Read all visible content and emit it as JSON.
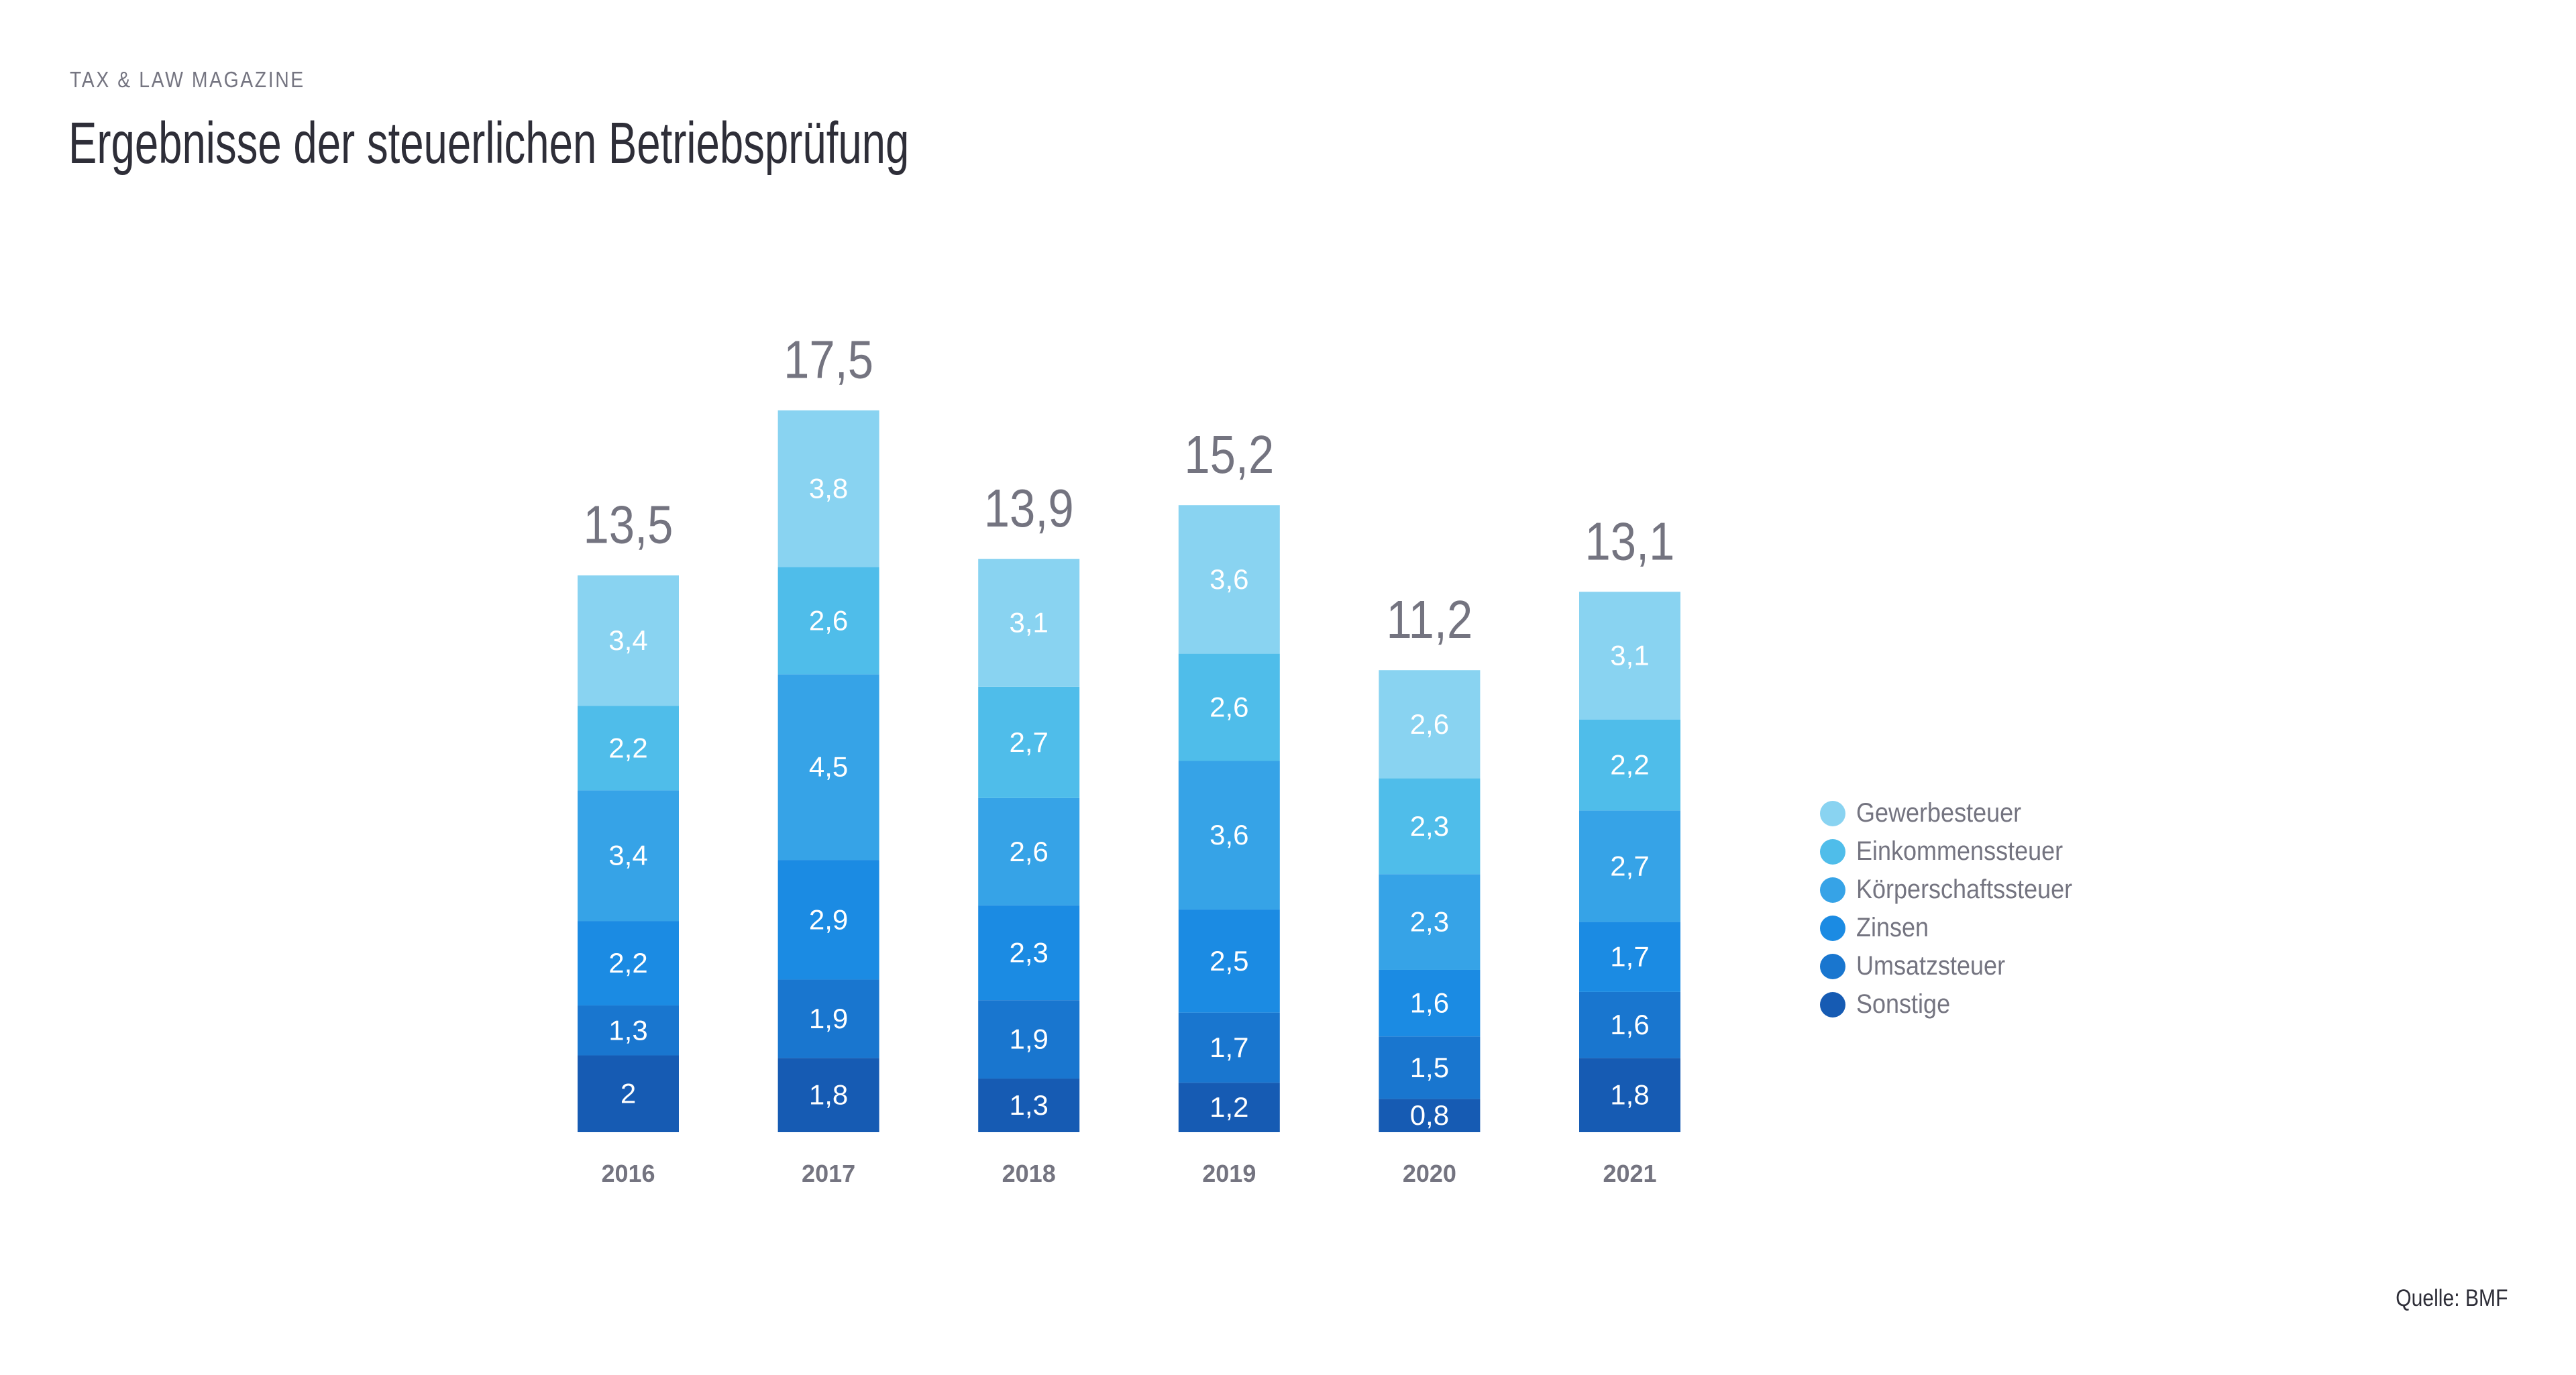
{
  "header": {
    "magazine": "TAX & LAW MAGAZINE",
    "title": "Ergebnisse der steuerlichen Betriebsprüfung"
  },
  "footer": {
    "source": "Quelle: BMF"
  },
  "chart_data": {
    "type": "bar",
    "stacked": true,
    "title": "Ergebnisse der steuerlichen Betriebsprüfung",
    "xlabel": "",
    "ylabel": "",
    "grid": false,
    "legend_position": "right",
    "categories": [
      "2016",
      "2017",
      "2018",
      "2019",
      "2020",
      "2021"
    ],
    "totals": [
      13.5,
      17.5,
      13.9,
      15.2,
      11.2,
      13.1
    ],
    "total_labels": [
      "13,5",
      "17,5",
      "13,9",
      "15,2",
      "11,2",
      "13,1"
    ],
    "series": [
      {
        "name": "Sonstige",
        "color": "#165BB3",
        "values": [
          2,
          1.8,
          1.3,
          1.2,
          0.8,
          1.8
        ],
        "labels": [
          "2",
          "1,8",
          "1,3",
          "1,2",
          "0,8",
          "1,8"
        ]
      },
      {
        "name": "Umsatzsteuer",
        "color": "#1976CF",
        "values": [
          1.3,
          1.9,
          1.9,
          1.7,
          1.5,
          1.6
        ],
        "labels": [
          "1,3",
          "1,9",
          "1,9",
          "1,7",
          "1,5",
          "1,6"
        ]
      },
      {
        "name": "Zinsen",
        "color": "#1B8BE3",
        "values": [
          2.2,
          2.9,
          2.3,
          2.5,
          1.6,
          1.7
        ],
        "labels": [
          "2,2",
          "2,9",
          "2,3",
          "2,5",
          "1,6",
          "1,7"
        ]
      },
      {
        "name": "Körperschaftssteuer",
        "color": "#36A3E7",
        "values": [
          3.4,
          4.5,
          2.6,
          3.6,
          2.3,
          2.7
        ],
        "labels": [
          "3,4",
          "4,5",
          "2,6",
          "3,6",
          "2,3",
          "2,7"
        ]
      },
      {
        "name": "Einkommenssteuer",
        "color": "#4FBDEA",
        "values": [
          2.2,
          2.6,
          2.7,
          2.6,
          2.3,
          2.2
        ],
        "labels": [
          "2,2",
          "2,6",
          "2,7",
          "2,6",
          "2,3",
          "2,2"
        ]
      },
      {
        "name": "Gewerbesteuer",
        "color": "#89D3F1",
        "values": [
          3.4,
          3.8,
          3.1,
          3.6,
          2.6,
          3.1
        ],
        "labels": [
          "3,4",
          "3,8",
          "3,1",
          "3,6",
          "2,6",
          "3,1"
        ]
      }
    ],
    "legend": [
      "Gewerbesteuer",
      "Einkommenssteuer",
      "Körperschaftssteuer",
      "Zinsen",
      "Umsatzsteuer",
      "Sonstige"
    ]
  },
  "colors": {
    "total_label": "#747480",
    "year_label": "#747480",
    "segment_label": "#ffffff"
  }
}
